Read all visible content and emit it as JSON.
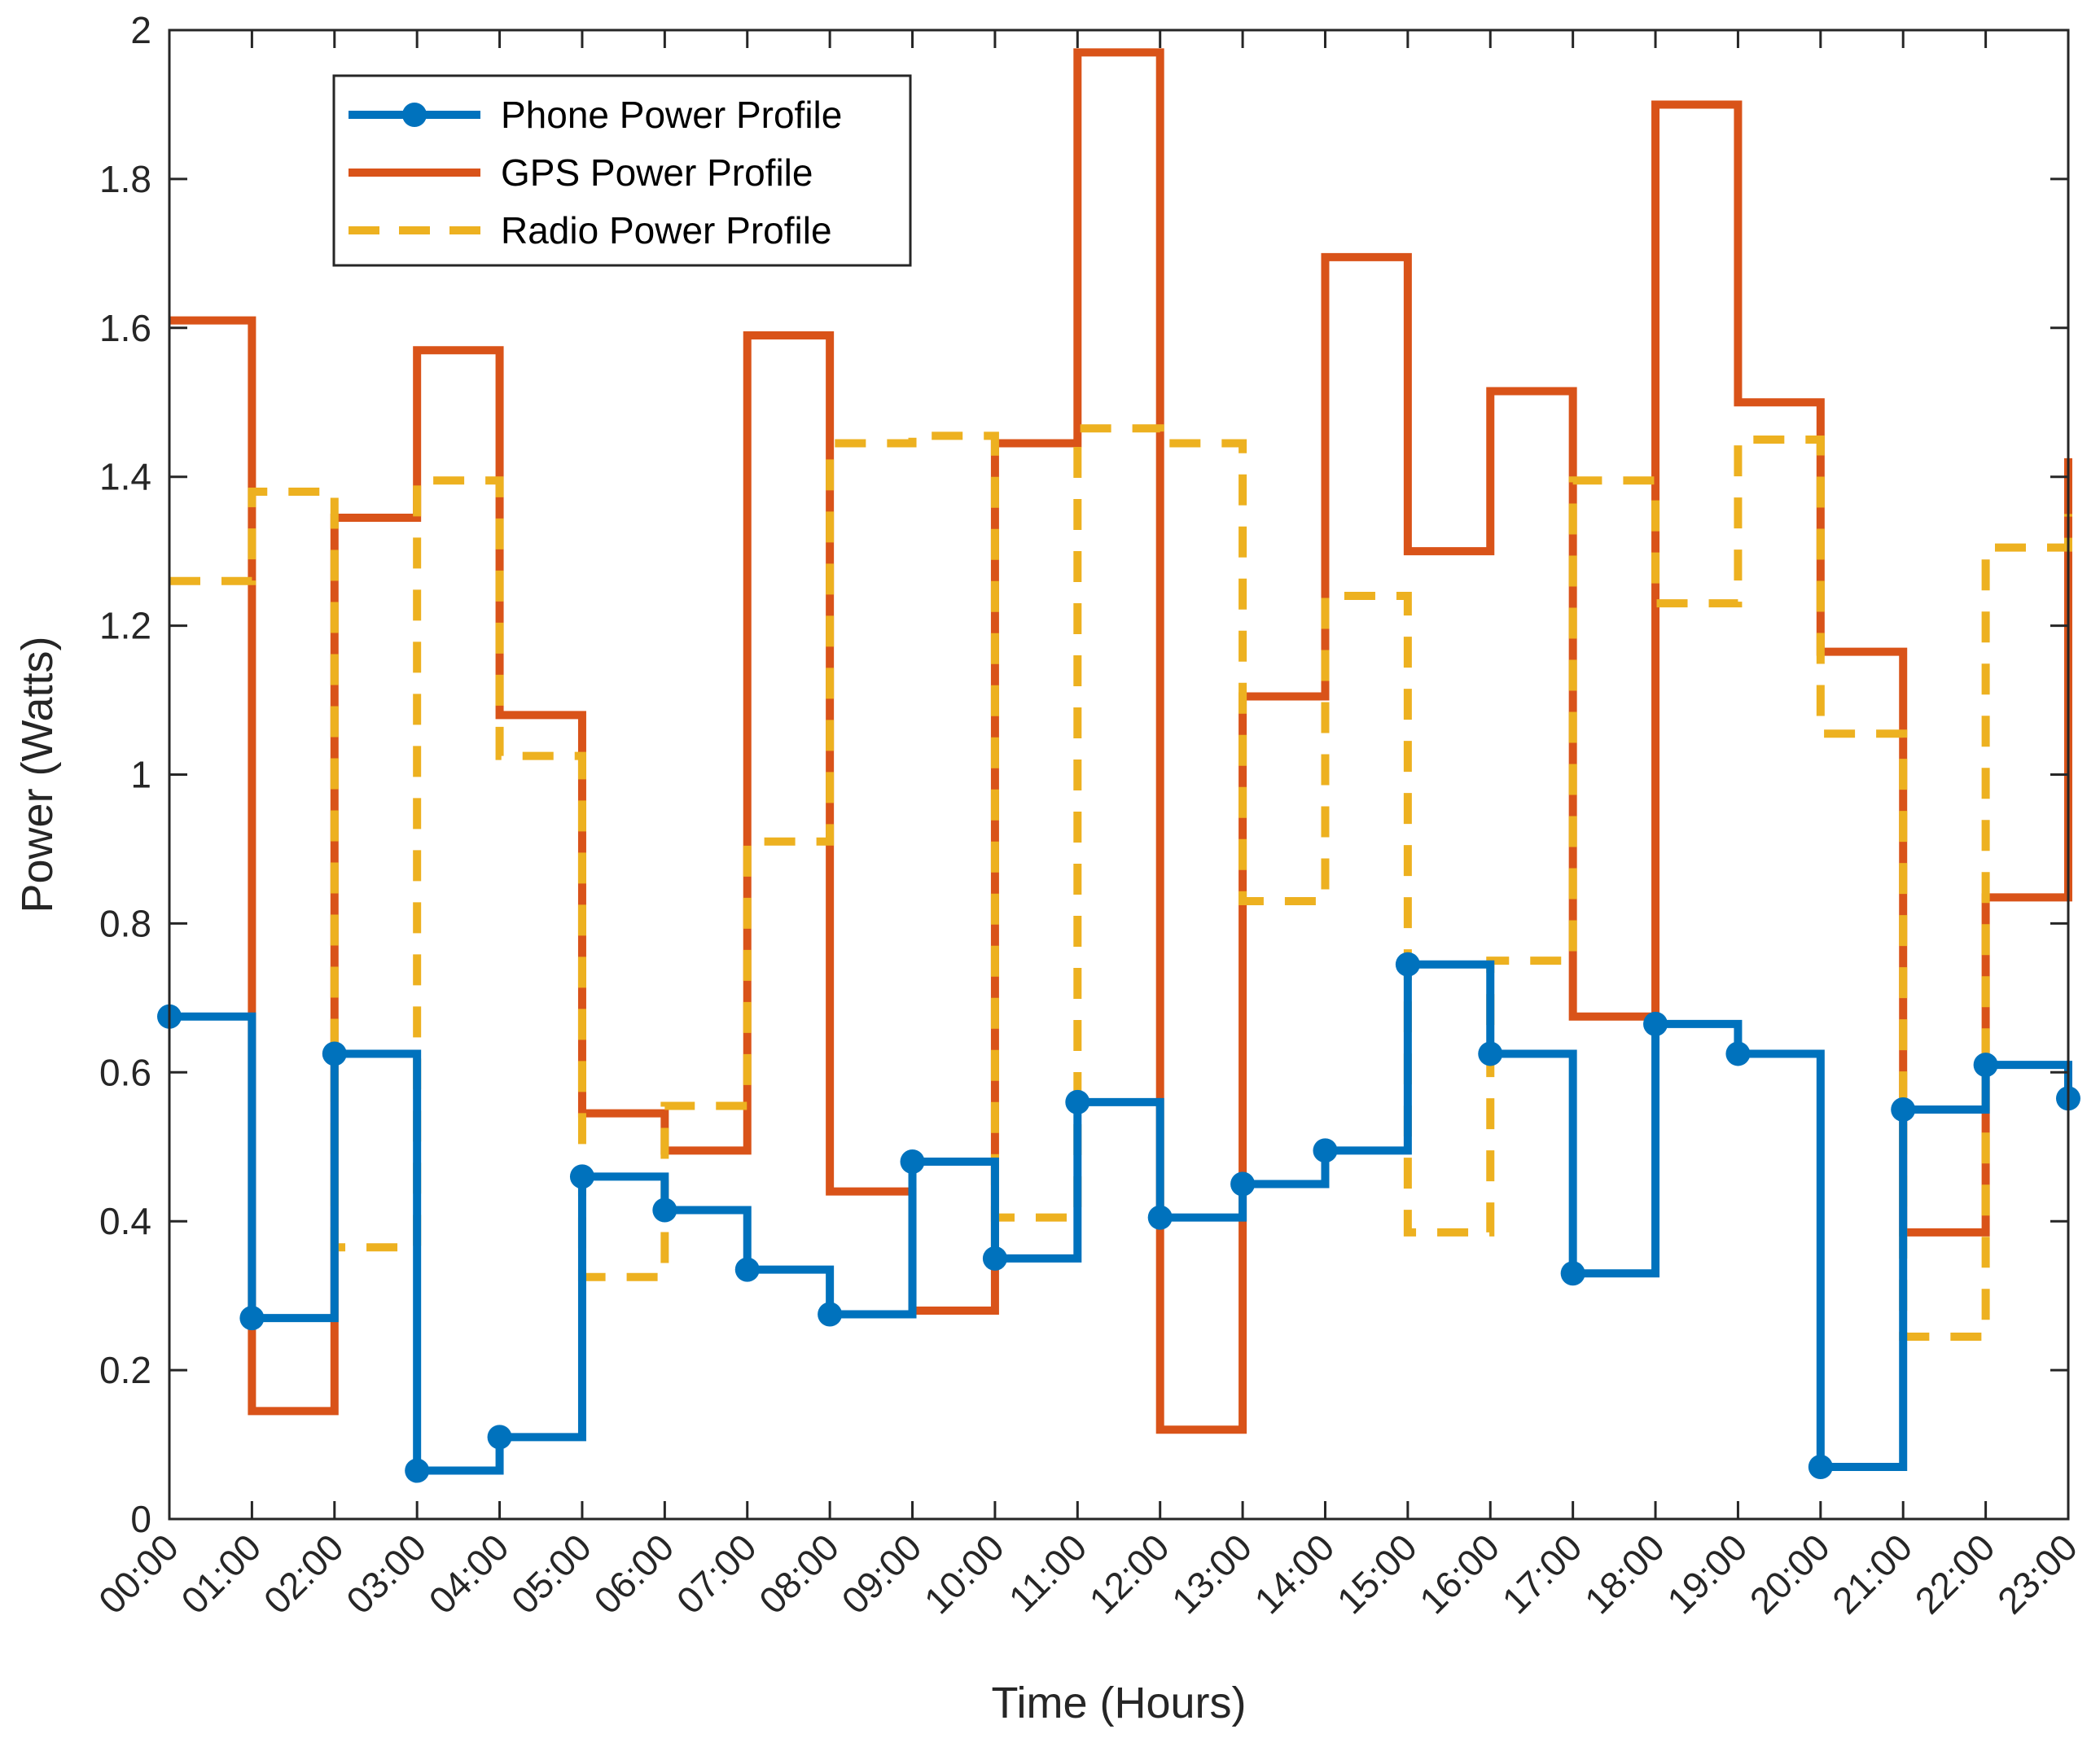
{
  "chart_data": {
    "type": "line",
    "step": "post",
    "title": "",
    "xlabel": "Time (Hours)",
    "ylabel": "Power (Watts)",
    "categories": [
      "00:00",
      "01:00",
      "02:00",
      "03:00",
      "04:00",
      "05:00",
      "06:00",
      "07:00",
      "08:00",
      "09:00",
      "10:00",
      "11:00",
      "12:00",
      "13:00",
      "14:00",
      "15:00",
      "16:00",
      "17:00",
      "18:00",
      "19:00",
      "20:00",
      "21:00",
      "22:00",
      "23:00"
    ],
    "x": [
      0,
      1,
      2,
      3,
      4,
      5,
      6,
      7,
      8,
      9,
      10,
      11,
      12,
      13,
      14,
      15,
      16,
      17,
      18,
      19,
      20,
      21,
      22,
      23
    ],
    "xlim": [
      0,
      23
    ],
    "ylim": [
      0,
      2
    ],
    "yticks": [
      0,
      0.2,
      0.4,
      0.6,
      0.8,
      1,
      1.2,
      1.4,
      1.6,
      1.8,
      2
    ],
    "ytick_labels": [
      "0",
      "0.2",
      "0.4",
      "0.6",
      "0.8",
      "1",
      "1.2",
      "1.4",
      "1.6",
      "1.8",
      "2"
    ],
    "grid": false,
    "legend_position": "top-left",
    "series": [
      {
        "name": "Phone Power Profile",
        "color": "#0072BD",
        "line_style": "solid",
        "marker": "circle",
        "values": [
          0.675,
          0.27,
          0.625,
          0.065,
          0.11,
          0.46,
          0.415,
          0.335,
          0.275,
          0.48,
          0.35,
          0.56,
          0.405,
          0.45,
          0.495,
          0.745,
          0.625,
          0.33,
          0.665,
          0.625,
          0.07,
          0.55,
          0.61,
          0.565
        ]
      },
      {
        "name": "GPS Power Profile",
        "color": "#D95319",
        "line_style": "solid",
        "marker": "none",
        "values": [
          1.61,
          0.145,
          1.345,
          1.57,
          1.08,
          0.545,
          0.495,
          1.59,
          0.44,
          0.28,
          1.445,
          1.97,
          0.12,
          1.105,
          1.695,
          1.3,
          1.515,
          0.675,
          1.9,
          1.5,
          1.165,
          0.385,
          0.835,
          1.425
        ]
      },
      {
        "name": "Radio Power Profile",
        "color": "#EDB120",
        "line_style": "dashed",
        "marker": "none",
        "values": [
          1.26,
          1.38,
          0.365,
          1.395,
          1.025,
          0.325,
          0.555,
          0.91,
          1.445,
          1.455,
          0.405,
          1.465,
          1.445,
          0.83,
          1.24,
          0.385,
          0.75,
          1.395,
          1.23,
          1.45,
          1.055,
          0.245,
          1.305,
          1.35
        ]
      }
    ]
  }
}
